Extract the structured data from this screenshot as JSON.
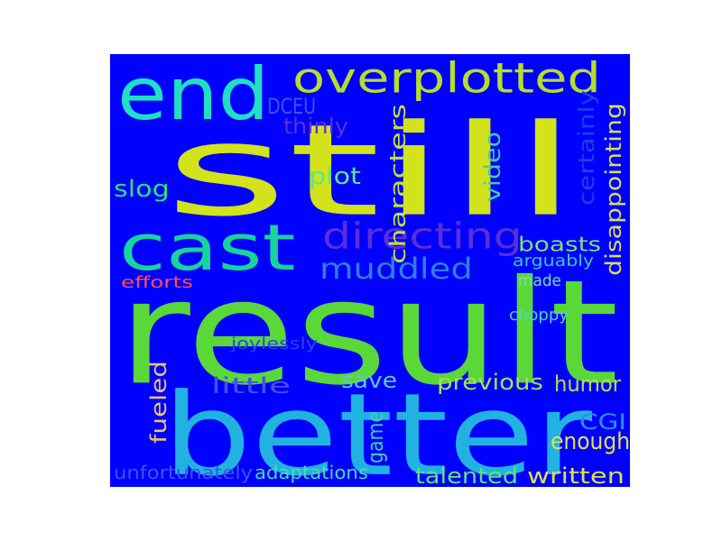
{
  "background_color": "#0000ff",
  "words": [
    {
      "id": "still",
      "text": "still",
      "color": "#d2e21b"
    },
    {
      "id": "result",
      "text": "result",
      "color": "#5ad838"
    },
    {
      "id": "better",
      "text": "better",
      "color": "#22b2e2"
    },
    {
      "id": "end",
      "text": "end",
      "color": "#1fe0c4"
    },
    {
      "id": "cast",
      "text": "cast",
      "color": "#17d49a"
    },
    {
      "id": "overplotted",
      "text": "overplotted",
      "color": "#b5de2b"
    },
    {
      "id": "directing",
      "text": "directing",
      "color": "#5a2fd6"
    },
    {
      "id": "muddled",
      "text": "muddled",
      "color": "#2f7ee0"
    },
    {
      "id": "characters",
      "text": "characters",
      "color": "#c2e03a"
    },
    {
      "id": "disappointing",
      "text": "disappointing",
      "color": "#d8dc5a"
    },
    {
      "id": "video",
      "text": "video",
      "color": "#3fd0a0"
    },
    {
      "id": "certainly",
      "text": "certainly",
      "color": "#1d3fe6"
    },
    {
      "id": "boasts",
      "text": "boasts",
      "color": "#7fe070"
    },
    {
      "id": "plot",
      "text": "plot",
      "color": "#5ce88a"
    },
    {
      "id": "slog",
      "text": "slog",
      "color": "#2ee07a"
    },
    {
      "id": "DCEU",
      "text": "DCEU",
      "color": "#3b55e6"
    },
    {
      "id": "thinly",
      "text": "thinly",
      "color": "#5a2fd6"
    },
    {
      "id": "arguably",
      "text": "arguably",
      "color": "#3fc6c0"
    },
    {
      "id": "made",
      "text": "made",
      "color": "#7dd8b0"
    },
    {
      "id": "efforts",
      "text": "efforts",
      "color": "#ff5050"
    },
    {
      "id": "choppy",
      "text": "choppy",
      "color": "#55d4c0"
    },
    {
      "id": "joylessly",
      "text": "joylessly",
      "color": "#2a44e8"
    },
    {
      "id": "little",
      "text": "little",
      "color": "#4a4fe6"
    },
    {
      "id": "save",
      "text": "save",
      "color": "#5cc8d0"
    },
    {
      "id": "previous",
      "text": "previous",
      "color": "#a8dc5a"
    },
    {
      "id": "humor",
      "text": "humor",
      "color": "#b8dc50"
    },
    {
      "id": "fueled",
      "text": "fueled",
      "color": "#e8c46a"
    },
    {
      "id": "game",
      "text": "game",
      "color": "#3fd0b0"
    },
    {
      "id": "CGI",
      "text": "CGI",
      "color": "#2f8ee0"
    },
    {
      "id": "enough",
      "text": "enough",
      "color": "#e0e050"
    },
    {
      "id": "unfortunately",
      "text": "unfortunately",
      "color": "#3b55e6"
    },
    {
      "id": "adaptations",
      "text": "adaptations",
      "color": "#4ed8b0"
    },
    {
      "id": "talented",
      "text": "talented",
      "color": "#5fe080"
    },
    {
      "id": "written",
      "text": "written",
      "color": "#d8e050"
    }
  ]
}
